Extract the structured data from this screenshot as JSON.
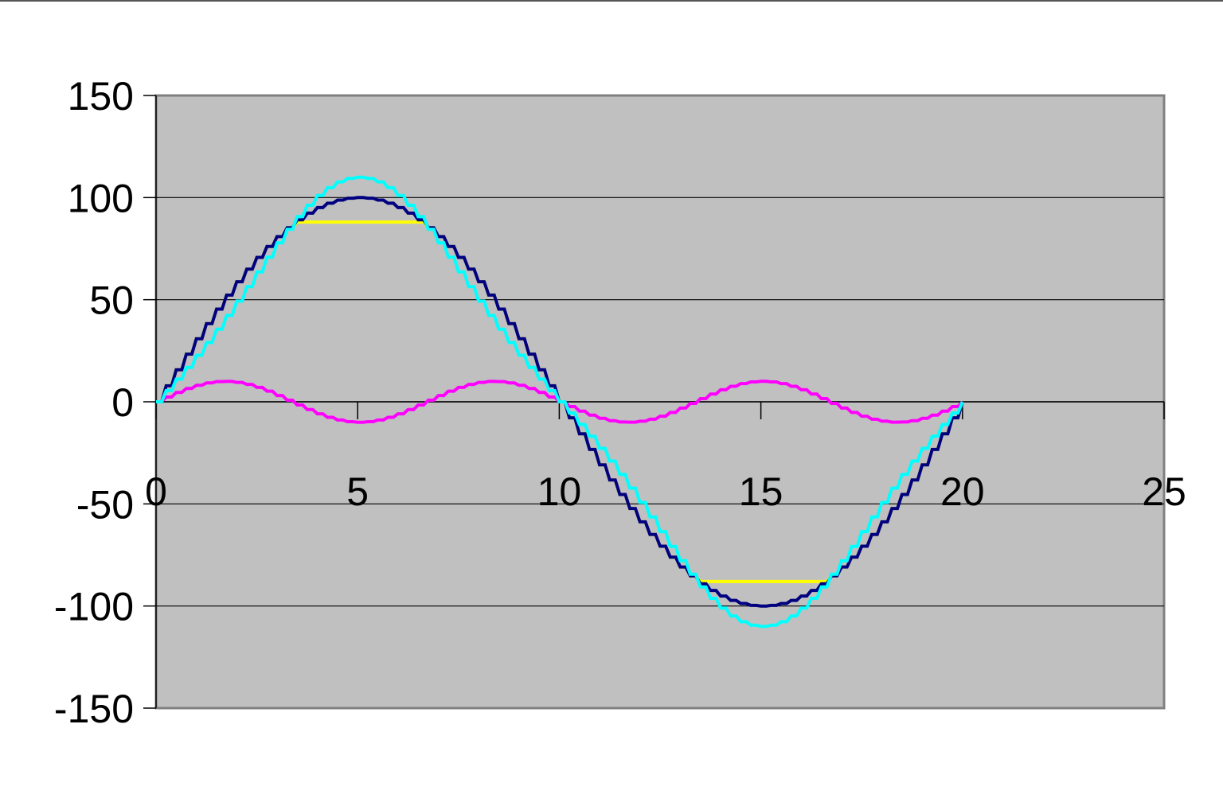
{
  "chart_data": {
    "type": "line",
    "title": "",
    "xlabel": "",
    "ylabel": "",
    "xlim": [
      0,
      25
    ],
    "ylim": [
      -150,
      150
    ],
    "x_ticks": [
      0,
      5,
      10,
      15,
      20,
      25
    ],
    "y_ticks": [
      150,
      100,
      50,
      0,
      -50,
      -100,
      -150
    ],
    "grid": "horizontal-major",
    "legend": "none",
    "plot_background": "#c0c0c0",
    "x_axis_crosses_at": 0,
    "x_range_of_series": [
      0,
      20
    ],
    "step_width": 0.25,
    "series": [
      {
        "color": "#000080",
        "description_values": "sine wave, amplitude 100, period 20",
        "amplitude": 100,
        "kind": "sine"
      },
      {
        "color": "#ffff00",
        "amplitude": 100,
        "clip": 88,
        "kind": "clipped-sine"
      },
      {
        "color": "#00ffff",
        "amplitude": 100,
        "third_harmonic": -10,
        "kind": "sine-plus-third-harmonic"
      },
      {
        "color": "#ff00ff",
        "amplitude": 10,
        "harmonic": 3,
        "kind": "third-harmonic"
      }
    ]
  }
}
